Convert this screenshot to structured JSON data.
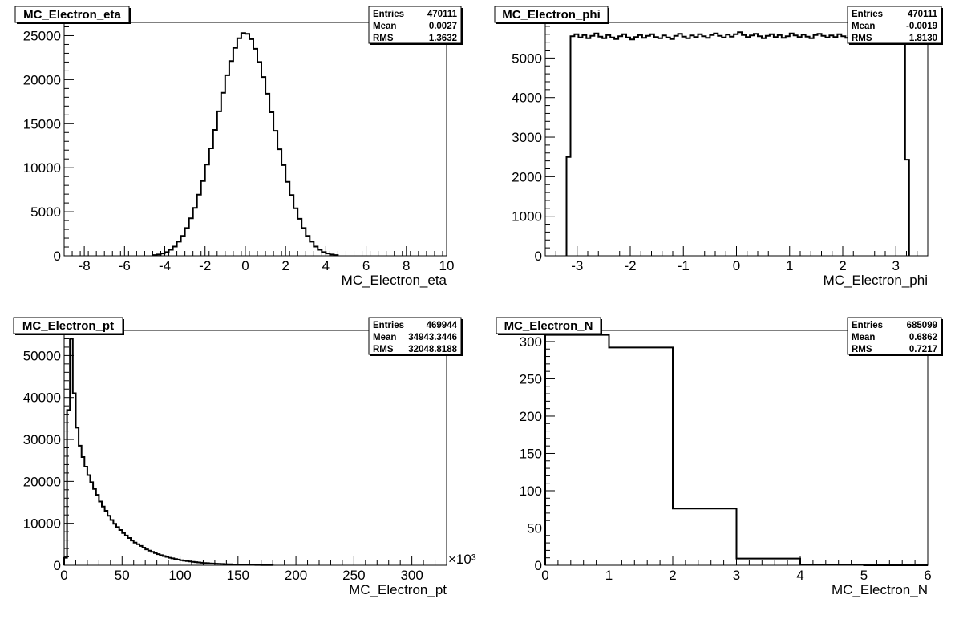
{
  "chart_data": [
    {
      "type": "histogram",
      "title": "MC_Electron_eta",
      "xlabel": "MC_Electron_eta",
      "ylabel": "",
      "xlim": [
        -9,
        10
      ],
      "ylim": [
        0,
        26500
      ],
      "xticks": [
        -8,
        -6,
        -4,
        -2,
        0,
        2,
        4,
        6,
        8,
        10
      ],
      "yticks": [
        0,
        5000,
        10000,
        15000,
        20000,
        25000
      ],
      "stats": [
        [
          "Entries",
          "470111"
        ],
        [
          "Mean",
          "0.0027"
        ],
        [
          "RMS",
          "1.3632"
        ]
      ],
      "bin_edges": [
        -4.6,
        -4.4,
        -4.2,
        -4.0,
        -3.8,
        -3.6,
        -3.4,
        -3.2,
        -3.0,
        -2.8,
        -2.6,
        -2.4,
        -2.2,
        -2.0,
        -1.8,
        -1.6,
        -1.4,
        -1.2,
        -1.0,
        -0.8,
        -0.6,
        -0.4,
        -0.2,
        0.0,
        0.2,
        0.4,
        0.6,
        0.8,
        1.0,
        1.2,
        1.4,
        1.6,
        1.8,
        2.0,
        2.2,
        2.4,
        2.6,
        2.8,
        3.0,
        3.2,
        3.4,
        3.6,
        3.8,
        4.0,
        4.2,
        4.4,
        4.6
      ],
      "values": [
        80,
        150,
        260,
        420,
        680,
        1050,
        1600,
        2250,
        3150,
        4250,
        5450,
        6950,
        8500,
        10350,
        12200,
        14300,
        16400,
        18500,
        20500,
        22100,
        23600,
        24700,
        25300,
        25200,
        24600,
        23500,
        22000,
        20300,
        18400,
        16300,
        14200,
        12100,
        10300,
        8400,
        6900,
        5400,
        4200,
        3150,
        2250,
        1600,
        1050,
        680,
        420,
        260,
        150,
        80
      ]
    },
    {
      "type": "histogram",
      "title": "MC_Electron_phi",
      "xlabel": "MC_Electron_phi",
      "ylabel": "",
      "xlim": [
        -3.6,
        3.6
      ],
      "ylim": [
        0,
        5900
      ],
      "xticks": [
        -3,
        -2,
        -1,
        0,
        1,
        2,
        3
      ],
      "yticks": [
        0,
        1000,
        2000,
        3000,
        4000,
        5000
      ],
      "stats": [
        [
          "Entries",
          "470111"
        ],
        [
          "Mean",
          "-0.0019"
        ],
        [
          "RMS",
          "1.8130"
        ]
      ],
      "bin_edges": [
        -3.2,
        -3.125,
        -3.05,
        -2.975,
        -2.9,
        -2.825,
        -2.75,
        -2.675,
        -2.6,
        -2.525,
        -2.45,
        -2.375,
        -2.3,
        -2.225,
        -2.15,
        -2.075,
        -2.0,
        -1.925,
        -1.85,
        -1.775,
        -1.7,
        -1.625,
        -1.55,
        -1.475,
        -1.4,
        -1.325,
        -1.25,
        -1.175,
        -1.1,
        -1.025,
        -0.95,
        -0.875,
        -0.8,
        -0.725,
        -0.65,
        -0.575,
        -0.5,
        -0.425,
        -0.35,
        -0.275,
        -0.2,
        -0.125,
        -0.05,
        0.025,
        0.1,
        0.175,
        0.25,
        0.325,
        0.4,
        0.475,
        0.55,
        0.625,
        0.7,
        0.775,
        0.85,
        0.925,
        1.0,
        1.075,
        1.15,
        1.225,
        1.3,
        1.375,
        1.45,
        1.525,
        1.6,
        1.675,
        1.75,
        1.825,
        1.9,
        1.975,
        2.05,
        2.125,
        2.2,
        2.275,
        2.35,
        2.425,
        2.5,
        2.575,
        2.65,
        2.725,
        2.8,
        2.875,
        2.95,
        3.025,
        3.1,
        3.175,
        3.25
      ],
      "values": [
        2500,
        5550,
        5600,
        5520,
        5580,
        5500,
        5560,
        5620,
        5540,
        5500,
        5580,
        5520,
        5480,
        5550,
        5600,
        5520,
        5470,
        5530,
        5580,
        5510,
        5560,
        5600,
        5530,
        5500,
        5570,
        5520,
        5480,
        5560,
        5610,
        5540,
        5500,
        5570,
        5530,
        5600,
        5550,
        5510,
        5580,
        5620,
        5560,
        5520,
        5590,
        5540,
        5600,
        5650,
        5580,
        5530,
        5570,
        5610,
        5550,
        5500,
        5560,
        5600,
        5530,
        5580,
        5510,
        5550,
        5620,
        5570,
        5530,
        5590,
        5540,
        5500,
        5580,
        5610,
        5560,
        5520,
        5570,
        5530,
        5600,
        5550,
        5510,
        5570,
        5620,
        5540,
        5500,
        5580,
        5530,
        5560,
        5610,
        5550,
        5520,
        5580,
        5540,
        5480,
        5700,
        2430
      ]
    },
    {
      "type": "histogram",
      "title": "MC_Electron_pt",
      "xlabel": "MC_Electron_pt",
      "ylabel": "",
      "xmultiplier": "×10³",
      "xlim": [
        0,
        330
      ],
      "ylim": [
        0,
        56000
      ],
      "xticks": [
        0,
        50,
        100,
        150,
        200,
        250,
        300
      ],
      "yticks": [
        0,
        10000,
        20000,
        30000,
        40000,
        50000
      ],
      "stats": [
        [
          "Entries",
          "469944"
        ],
        [
          "Mean",
          "34943.3446"
        ],
        [
          "RMS",
          "32048.8188"
        ]
      ],
      "bin_edges": [
        0,
        2.5,
        5,
        7.5,
        10,
        12.5,
        15,
        17.5,
        20,
        22.5,
        25,
        27.5,
        30,
        32.5,
        35,
        37.5,
        40,
        42.5,
        45,
        47.5,
        50,
        52.5,
        55,
        57.5,
        60,
        62.5,
        65,
        67.5,
        70,
        72.5,
        75,
        77.5,
        80,
        82.5,
        85,
        87.5,
        90,
        92.5,
        95,
        97.5,
        100,
        102.5,
        105,
        107.5,
        110,
        112.5,
        115,
        117.5,
        120,
        122.5,
        125,
        127.5,
        130,
        132.5,
        135,
        137.5,
        140,
        142.5,
        145,
        147.5,
        150,
        152.5,
        155,
        157.5,
        160,
        162.5,
        165,
        167.5,
        170,
        172.5,
        175,
        177.5,
        180
      ],
      "values": [
        1800,
        37000,
        54000,
        41000,
        32800,
        28500,
        25800,
        23500,
        21500,
        19800,
        18200,
        16800,
        15200,
        14000,
        13000,
        11800,
        10800,
        9900,
        9100,
        8400,
        7700,
        7100,
        6500,
        5900,
        5400,
        5000,
        4600,
        4200,
        3800,
        3500,
        3200,
        2900,
        2650,
        2400,
        2200,
        2000,
        1800,
        1650,
        1500,
        1350,
        1200,
        1100,
        1000,
        900,
        820,
        740,
        670,
        600,
        540,
        490,
        440,
        400,
        360,
        330,
        300,
        270,
        240,
        220,
        200,
        180,
        160,
        145,
        130,
        115,
        100,
        90,
        80,
        70,
        60,
        50,
        45,
        40
      ]
    },
    {
      "type": "histogram",
      "title": "MC_Electron_N",
      "xlabel": "MC_Electron_N",
      "ylabel": "",
      "xlim": [
        0,
        6
      ],
      "ylim": [
        0,
        315
      ],
      "xticks": [
        0,
        1,
        2,
        3,
        4,
        5,
        6
      ],
      "yticks": [
        0,
        50,
        100,
        150,
        200,
        250,
        300
      ],
      "stats": [
        [
          "Entries",
          "685099"
        ],
        [
          "Mean",
          "0.6862"
        ],
        [
          "RMS",
          "0.7217"
        ]
      ],
      "bin_edges": [
        0,
        1,
        2,
        3,
        4,
        5,
        6
      ],
      "values": [
        309,
        292,
        76,
        9,
        1,
        0
      ]
    }
  ]
}
